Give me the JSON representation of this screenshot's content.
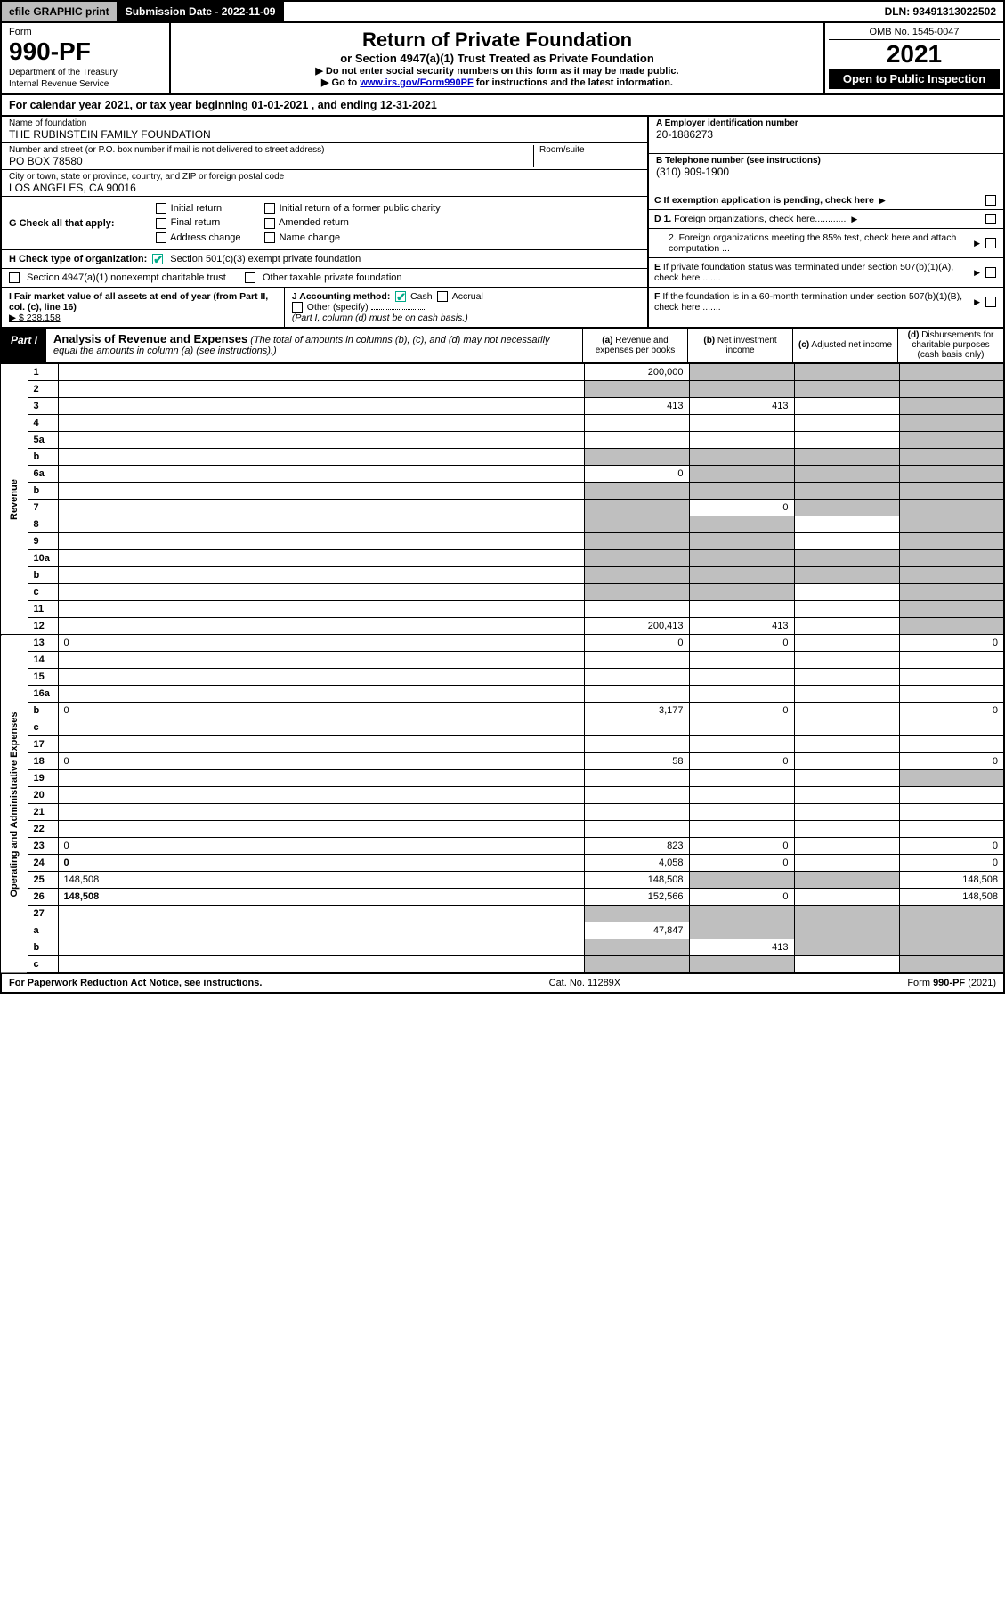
{
  "topbar": {
    "efile": "efile GRAPHIC print",
    "submission": "Submission Date - 2022-11-09",
    "dln": "DLN: 93491313022502"
  },
  "hdr": {
    "form": "Form",
    "formnum": "990-PF",
    "dept1": "Department of the Treasury",
    "dept2": "Internal Revenue Service",
    "title": "Return of Private Foundation",
    "subtitle": "or Section 4947(a)(1) Trust Treated as Private Foundation",
    "instr1": "▶ Do not enter social security numbers on this form as it may be made public.",
    "instr2_pre": "▶ Go to ",
    "instr2_link": "www.irs.gov/Form990PF",
    "instr2_post": " for instructions and the latest information.",
    "omb": "OMB No. 1545-0047",
    "year": "2021",
    "open": "Open to Public Inspection"
  },
  "calendar": "For calendar year 2021, or tax year beginning 01-01-2021 , and ending 12-31-2021",
  "name_lbl": "Name of foundation",
  "name": "THE RUBINSTEIN FAMILY FOUNDATION",
  "addr_lbl": "Number and street (or P.O. box number if mail is not delivered to street address)",
  "addr": "PO BOX 78580",
  "room_lbl": "Room/suite",
  "city_lbl": "City or town, state or province, country, and ZIP or foreign postal code",
  "city": "LOS ANGELES, CA  90016",
  "A_lbl": "A Employer identification number",
  "A_val": "20-1886273",
  "B_lbl": "B Telephone number (see instructions)",
  "B_val": "(310) 909-1900",
  "C_lbl": "C If exemption application is pending, check here",
  "D1_lbl": "D 1. Foreign organizations, check here............",
  "D2_lbl": "2. Foreign organizations meeting the 85% test, check here and attach computation ...",
  "E_lbl": "E If private foundation status was terminated under section 507(b)(1)(A), check here .......",
  "F_lbl": "F If the foundation is in a 60-month termination under section 507(b)(1)(B), check here .......",
  "G_lbl": "G Check all that apply:",
  "G_opts": [
    "Initial return",
    "Final return",
    "Address change",
    "Initial return of a former public charity",
    "Amended return",
    "Name change"
  ],
  "H_lbl": "H Check type of organization:",
  "H_opt1": "Section 501(c)(3) exempt private foundation",
  "H_opt2": "Section 4947(a)(1) nonexempt charitable trust",
  "H_opt3": "Other taxable private foundation",
  "I_lbl": "I Fair market value of all assets at end of year (from Part II, col. (c), line 16)",
  "I_val": "▶ $  238,158",
  "J_lbl": "J Accounting method:",
  "J_cash": "Cash",
  "J_accrual": "Accrual",
  "J_other": "Other (specify)",
  "J_note": "(Part I, column (d) must be on cash basis.)",
  "part1_lbl": "Part I",
  "part1_title": "Analysis of Revenue and Expenses",
  "part1_note": "(The total of amounts in columns (b), (c), and (d) may not necessarily equal the amounts in column (a) (see instructions).)",
  "col_a": "(a) Revenue and expenses per books",
  "col_b": "(b) Net investment income",
  "col_c": "(c) Adjusted net income",
  "col_d": "(d) Disbursements for charitable purposes (cash basis only)",
  "side_rev": "Revenue",
  "side_exp": "Operating and Administrative Expenses",
  "rows": [
    {
      "n": "1",
      "d": "",
      "a": "200,000",
      "b": "",
      "c": "",
      "sb": true,
      "sc": true,
      "sd": true
    },
    {
      "n": "2",
      "d": "",
      "a": "",
      "b": "",
      "c": "",
      "sa": true,
      "sb": true,
      "sc": true,
      "sd": true
    },
    {
      "n": "3",
      "d": "",
      "a": "413",
      "b": "413",
      "c": "",
      "sd": true
    },
    {
      "n": "4",
      "d": "",
      "a": "",
      "b": "",
      "c": "",
      "sd": true
    },
    {
      "n": "5a",
      "d": "",
      "a": "",
      "b": "",
      "c": "",
      "sd": true
    },
    {
      "n": "b",
      "d": "",
      "a": "",
      "b": "",
      "c": "",
      "sa": true,
      "sb": true,
      "sc": true,
      "sd": true
    },
    {
      "n": "6a",
      "d": "",
      "a": "0",
      "b": "",
      "c": "",
      "sb": true,
      "sc": true,
      "sd": true
    },
    {
      "n": "b",
      "d": "",
      "a": "",
      "b": "",
      "c": "",
      "sa": true,
      "sb": true,
      "sc": true,
      "sd": true
    },
    {
      "n": "7",
      "d": "",
      "a": "",
      "b": "0",
      "c": "",
      "sa": true,
      "sc": true,
      "sd": true
    },
    {
      "n": "8",
      "d": "",
      "a": "",
      "b": "",
      "c": "",
      "sa": true,
      "sb": true,
      "sd": true
    },
    {
      "n": "9",
      "d": "",
      "a": "",
      "b": "",
      "c": "",
      "sa": true,
      "sb": true,
      "sd": true
    },
    {
      "n": "10a",
      "d": "",
      "a": "",
      "b": "",
      "c": "",
      "sa": true,
      "sb": true,
      "sc": true,
      "sd": true
    },
    {
      "n": "b",
      "d": "",
      "a": "",
      "b": "",
      "c": "",
      "sa": true,
      "sb": true,
      "sc": true,
      "sd": true
    },
    {
      "n": "c",
      "d": "",
      "a": "",
      "b": "",
      "c": "",
      "sa": true,
      "sb": true,
      "sd": true
    },
    {
      "n": "11",
      "d": "",
      "a": "",
      "b": "",
      "c": "",
      "sd": true
    },
    {
      "n": "12",
      "d": "",
      "a": "200,413",
      "b": "413",
      "c": "",
      "sd": true,
      "bold": true
    },
    {
      "n": "13",
      "d": "0",
      "a": "0",
      "b": "0",
      "c": ""
    },
    {
      "n": "14",
      "d": "",
      "a": "",
      "b": "",
      "c": ""
    },
    {
      "n": "15",
      "d": "",
      "a": "",
      "b": "",
      "c": ""
    },
    {
      "n": "16a",
      "d": "",
      "a": "",
      "b": "",
      "c": ""
    },
    {
      "n": "b",
      "d": "0",
      "a": "3,177",
      "b": "0",
      "c": ""
    },
    {
      "n": "c",
      "d": "",
      "a": "",
      "b": "",
      "c": ""
    },
    {
      "n": "17",
      "d": "",
      "a": "",
      "b": "",
      "c": ""
    },
    {
      "n": "18",
      "d": "0",
      "a": "58",
      "b": "0",
      "c": ""
    },
    {
      "n": "19",
      "d": "",
      "a": "",
      "b": "",
      "c": "",
      "sd": true
    },
    {
      "n": "20",
      "d": "",
      "a": "",
      "b": "",
      "c": ""
    },
    {
      "n": "21",
      "d": "",
      "a": "",
      "b": "",
      "c": ""
    },
    {
      "n": "22",
      "d": "",
      "a": "",
      "b": "",
      "c": ""
    },
    {
      "n": "23",
      "d": "0",
      "a": "823",
      "b": "0",
      "c": ""
    },
    {
      "n": "24",
      "d": "0",
      "a": "4,058",
      "b": "0",
      "c": "",
      "bold": true
    },
    {
      "n": "25",
      "d": "148,508",
      "a": "148,508",
      "b": "",
      "c": "",
      "sb": true,
      "sc": true
    },
    {
      "n": "26",
      "d": "148,508",
      "a": "152,566",
      "b": "0",
      "c": "",
      "bold": true
    },
    {
      "n": "27",
      "d": "",
      "a": "",
      "b": "",
      "c": "",
      "sa": true,
      "sb": true,
      "sc": true,
      "sd": true
    },
    {
      "n": "a",
      "d": "",
      "a": "47,847",
      "b": "",
      "c": "",
      "sb": true,
      "sc": true,
      "sd": true,
      "bold": true
    },
    {
      "n": "b",
      "d": "",
      "a": "",
      "b": "413",
      "c": "",
      "sa": true,
      "sc": true,
      "sd": true,
      "bold": true
    },
    {
      "n": "c",
      "d": "",
      "a": "",
      "b": "",
      "c": "",
      "sa": true,
      "sb": true,
      "sd": true,
      "bold": true
    }
  ],
  "footer": {
    "left": "For Paperwork Reduction Act Notice, see instructions.",
    "mid": "Cat. No. 11289X",
    "right": "Form 990-PF (2021)"
  }
}
